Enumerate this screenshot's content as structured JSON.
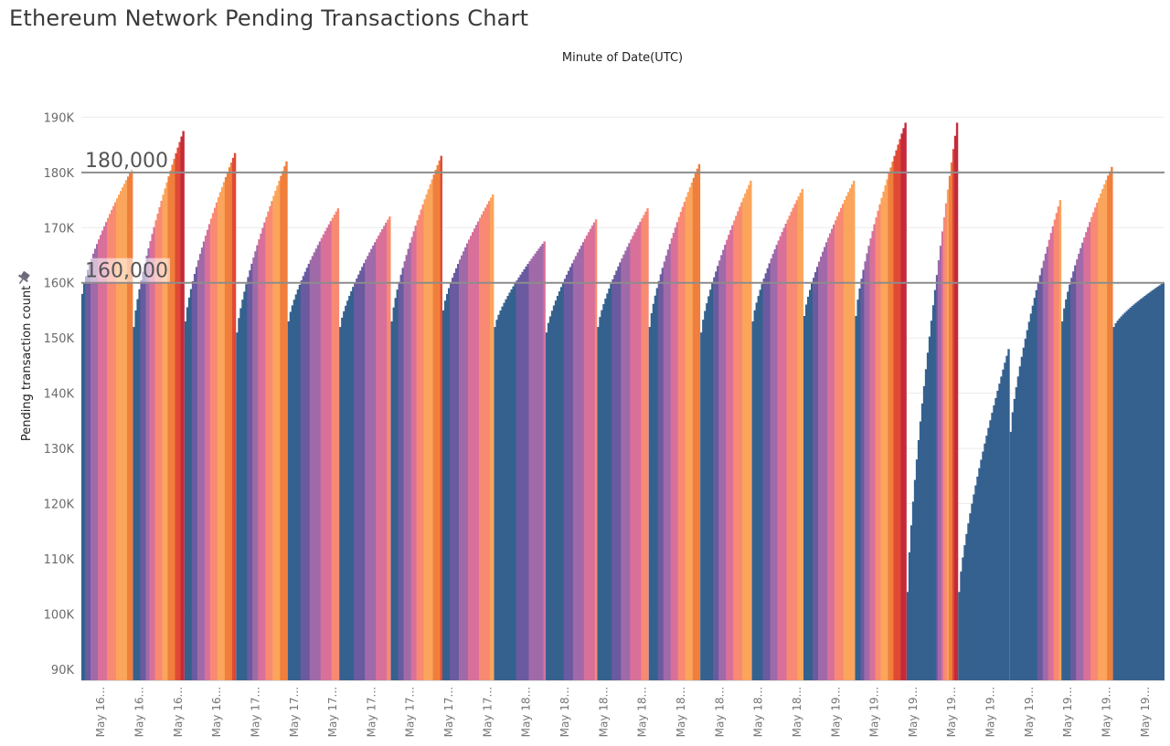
{
  "title": "Ethereum Network Pending Transactions Chart",
  "chart_data": {
    "type": "bar",
    "xlabel": "Minute of Date(UTC)",
    "ylabel": "Pending transaction count",
    "ylim": [
      88000,
      198000
    ],
    "yticks": [
      {
        "value": 90000,
        "label": "90K"
      },
      {
        "value": 100000,
        "label": "100K"
      },
      {
        "value": 110000,
        "label": "110K"
      },
      {
        "value": 120000,
        "label": "120K"
      },
      {
        "value": 130000,
        "label": "130K"
      },
      {
        "value": 140000,
        "label": "140K"
      },
      {
        "value": 150000,
        "label": "150K"
      },
      {
        "value": 160000,
        "label": "160K"
      },
      {
        "value": 170000,
        "label": "170K"
      },
      {
        "value": 180000,
        "label": "180K"
      },
      {
        "value": 190000,
        "label": "190K"
      }
    ],
    "x_tick_labels": [
      "May 16...",
      "May 16...",
      "May 16...",
      "May 16...",
      "May 17...",
      "May 17...",
      "May 17...",
      "May 17...",
      "May 17...",
      "May 17...",
      "May 17...",
      "May 18...",
      "May 18...",
      "May 18...",
      "May 18...",
      "May 18...",
      "May 18...",
      "May 18...",
      "May 18...",
      "May 19...",
      "May 19...",
      "May 19...",
      "May 19...",
      "May 19...",
      "May 19...",
      "May 19...",
      "May 19...",
      "May 19..."
    ],
    "reference_lines": [
      {
        "value": 180000,
        "label": "180,000"
      },
      {
        "value": 160000,
        "label": "160,000"
      }
    ],
    "base_color": "#35618f",
    "gradient_colors": [
      "#6a5aa0",
      "#a06aa8",
      "#d8709a",
      "#f88a74",
      "#fba55c",
      "#f07f3c",
      "#e04a35",
      "#c42b3a"
    ],
    "color_threshold": 160000,
    "sawtooth_cycles": [
      {
        "start": 158000,
        "peak": 180500
      },
      {
        "start": 152000,
        "peak": 187500
      },
      {
        "start": 153000,
        "peak": 183500
      },
      {
        "start": 151000,
        "peak": 182000
      },
      {
        "start": 153000,
        "peak": 173500
      },
      {
        "start": 152000,
        "peak": 172000
      },
      {
        "start": 153000,
        "peak": 183000
      },
      {
        "start": 155000,
        "peak": 176000
      },
      {
        "start": 152000,
        "peak": 167500
      },
      {
        "start": 151000,
        "peak": 171500
      },
      {
        "start": 152000,
        "peak": 173500
      },
      {
        "start": 152000,
        "peak": 181500
      },
      {
        "start": 151000,
        "peak": 178500
      },
      {
        "start": 153000,
        "peak": 177000
      },
      {
        "start": 154000,
        "peak": 178500
      },
      {
        "start": 154000,
        "peak": 189000
      },
      {
        "start": 104000,
        "peak": 189000
      },
      {
        "start": 104000,
        "peak": 148000
      },
      {
        "start": 133000,
        "peak": 175000
      },
      {
        "start": 153000,
        "peak": 181000
      },
      {
        "start": 152000,
        "peak": 160000
      }
    ]
  }
}
